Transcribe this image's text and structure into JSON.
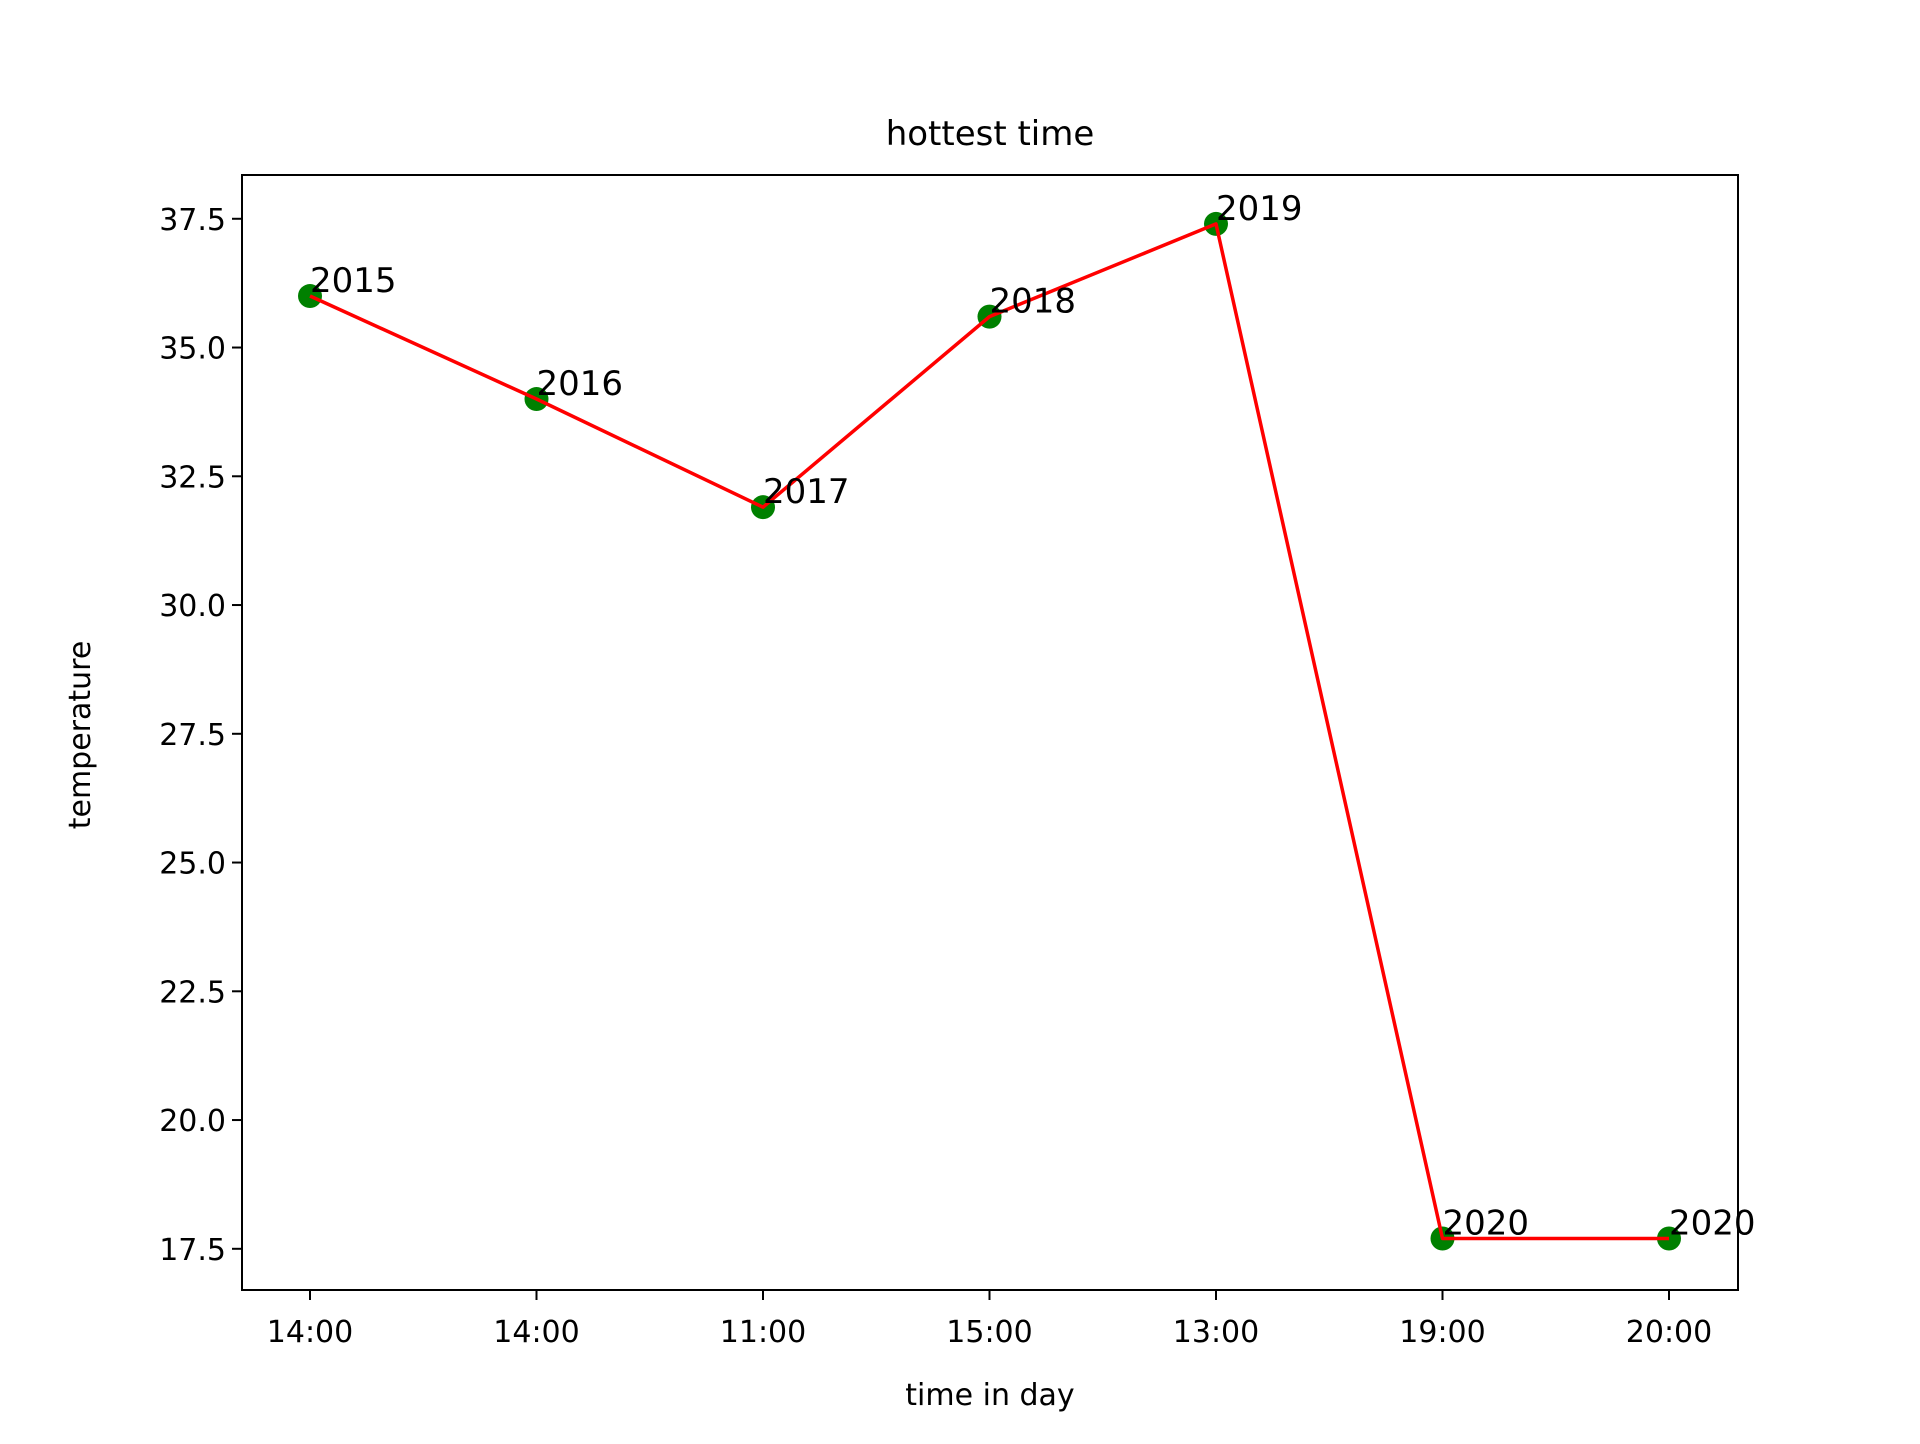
{
  "chart_data": {
    "type": "line",
    "title": "hottest time",
    "xlabel": "time in day",
    "ylabel": "temperature",
    "categories": [
      "14:00",
      "14:00",
      "11:00",
      "15:00",
      "13:00",
      "19:00",
      "20:00"
    ],
    "series": [
      {
        "values": [
          36.0,
          34.0,
          31.9,
          35.6,
          37.4,
          17.7,
          17.7
        ],
        "point_labels": [
          "2015",
          "2016",
          "2017",
          "2018",
          "2019",
          "2020",
          "2020"
        ],
        "line_color": "#ff0000",
        "marker_color": "#008000"
      }
    ],
    "ylim": [
      16.7,
      38.35
    ],
    "yticks": [
      17.5,
      20.0,
      22.5,
      25.0,
      27.5,
      30.0,
      32.5,
      35.0,
      37.5
    ],
    "grid": false,
    "legend": false
  }
}
